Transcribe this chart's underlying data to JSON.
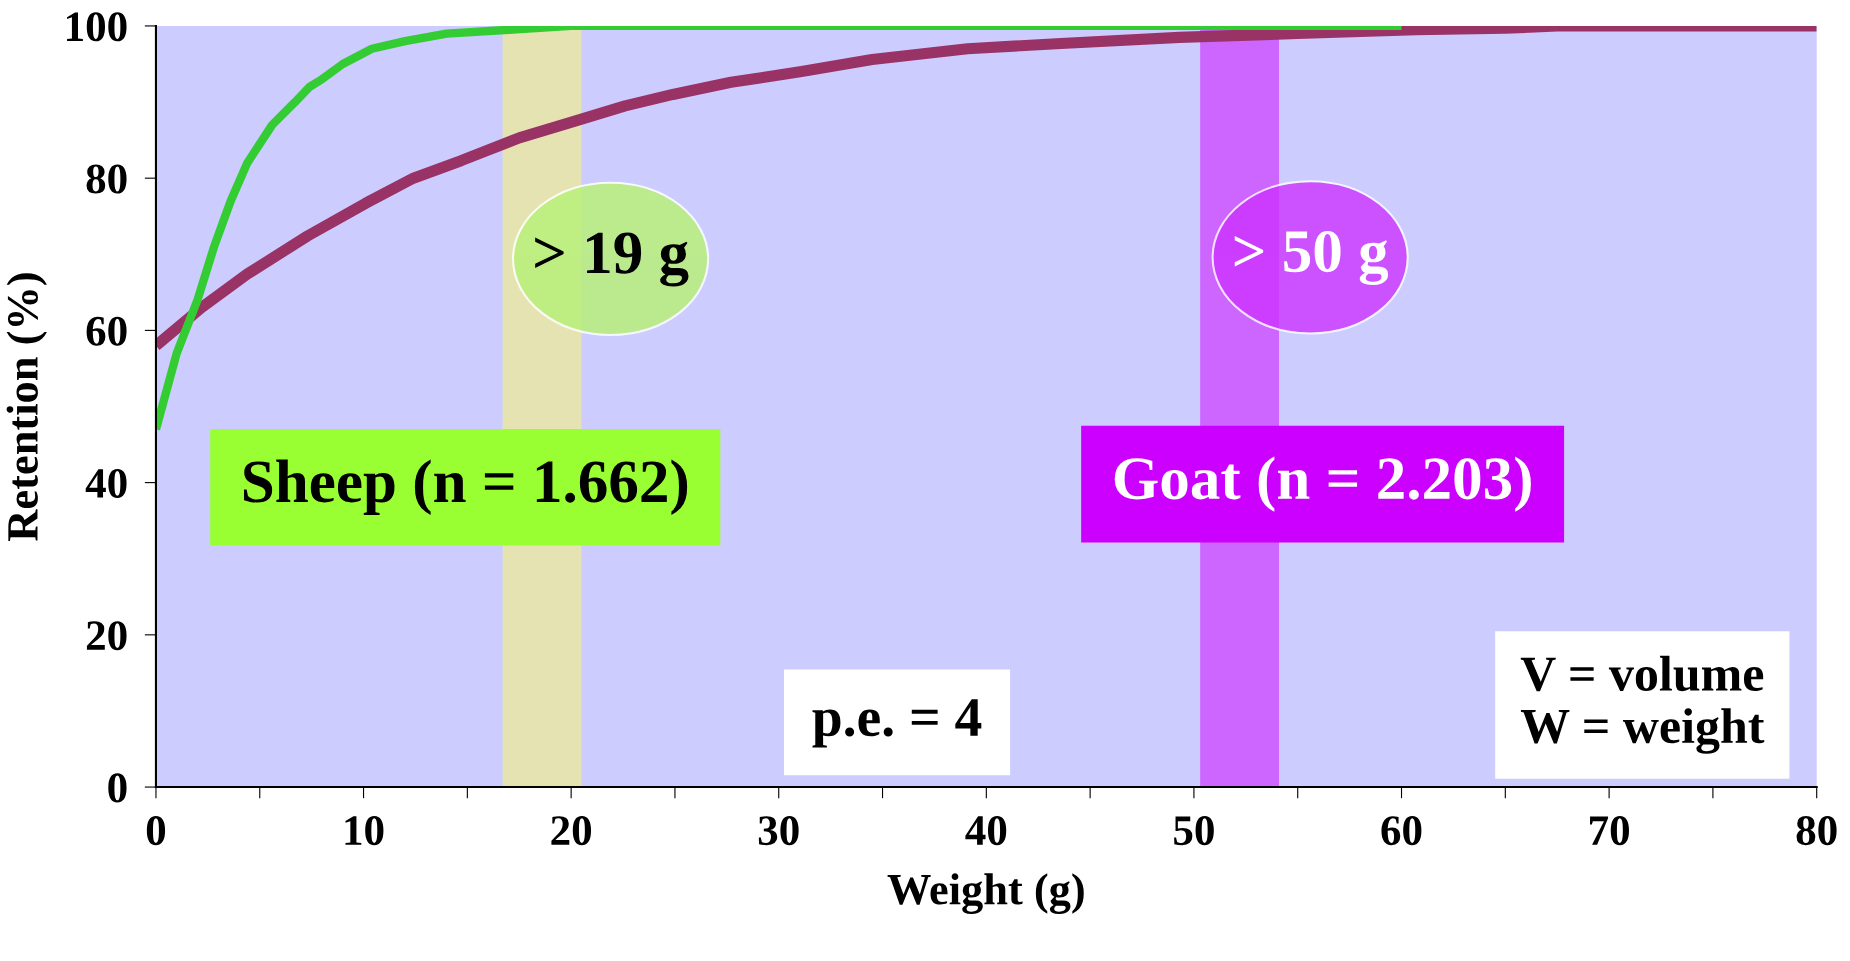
{
  "chart_data": {
    "type": "line",
    "xlabel": "Weight (g)",
    "ylabel": "Retention (%)",
    "xlim": [
      0,
      80
    ],
    "ylim": [
      0,
      100
    ],
    "xticks": [
      0,
      {
        "value": 5,
        "label": null
      },
      10,
      {
        "value": 15,
        "label": null
      },
      20,
      {
        "value": 25,
        "label": null
      },
      30,
      {
        "value": 35,
        "label": null
      },
      40,
      {
        "value": 45,
        "label": null
      },
      50,
      {
        "value": 55,
        "label": null
      },
      60,
      {
        "value": 65,
        "label": null
      },
      70,
      {
        "value": 75,
        "label": null
      },
      80
    ],
    "yticks": [
      0,
      20,
      40,
      60,
      80,
      100
    ],
    "grid": false,
    "marker": "none",
    "line_style": "solid",
    "series": [
      {
        "color": "#33cc33",
        "x": [
          0,
          1,
          2,
          2.8,
          3.6,
          4.4,
          5.6,
          6.7,
          7.4,
          8,
          9,
          10.4,
          12,
          14,
          17,
          20,
          60
        ],
        "values": [
          47,
          57,
          64,
          71,
          77,
          82,
          87,
          90,
          92,
          93,
          95,
          97,
          98,
          99,
          99.5,
          100,
          100
        ]
      },
      {
        "color": "#993366",
        "x": [
          0,
          2.2,
          4.4,
          7.3,
          10.1,
          12.4,
          14.7,
          17.5,
          20.3,
          22.6,
          24.9,
          27.7,
          31.1,
          34.5,
          39.1,
          43.6,
          49.3,
          55,
          60.7,
          65,
          67.5,
          80
        ],
        "values": [
          58,
          63,
          67.4,
          72.4,
          76.7,
          80,
          82.3,
          85.3,
          87.6,
          89.5,
          91,
          92.6,
          94,
          95.6,
          97,
          97.7,
          98.5,
          99,
          99.5,
          99.7,
          100,
          100
        ]
      }
    ],
    "bands": [
      {
        "axis": "x",
        "from": 16.7,
        "to": 20.5,
        "label": "> 19 g",
        "color": "#e6e3b3"
      },
      {
        "axis": "x",
        "from": 50.3,
        "to": 54.1,
        "label": "> 50 g",
        "color": "#cc66ff"
      }
    ],
    "annotations": [
      "Sheep (n = 1.662)",
      "Goat (n = 2.203)",
      "p.e. = 4",
      "V = volume\nW = weight"
    ]
  }
}
